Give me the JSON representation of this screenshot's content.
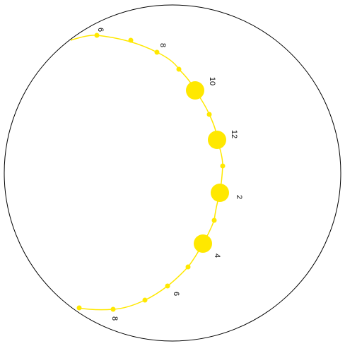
{
  "diagram": {
    "type": "sun-path",
    "colors": {
      "sun_path": "#ffe800",
      "sky_dome_outline": "#000000",
      "label_text": "#111111"
    },
    "hour_labels": [
      "6",
      "8",
      "10",
      "12",
      "2",
      "4",
      "6",
      "8"
    ]
  }
}
